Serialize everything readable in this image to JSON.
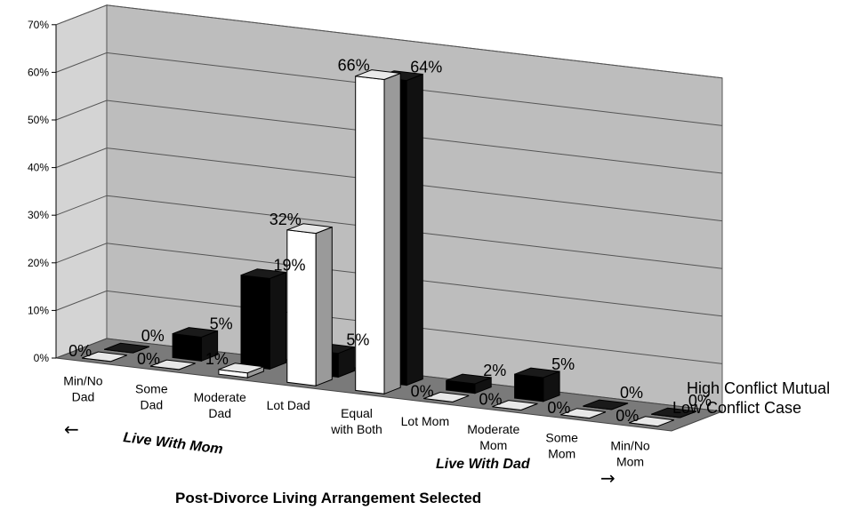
{
  "chart_data": {
    "type": "bar",
    "subtype": "3d-clustered",
    "categories": [
      [
        "Min/No",
        "Dad"
      ],
      [
        "Some",
        "Dad"
      ],
      [
        "Moderate",
        "Dad"
      ],
      [
        "Lot Dad"
      ],
      [
        "Equal",
        "with Both"
      ],
      [
        "Lot Mom"
      ],
      [
        "Moderate",
        "Mom"
      ],
      [
        "Some",
        "Mom"
      ],
      [
        "Min/No",
        "Mom"
      ]
    ],
    "series": [
      {
        "name": "Low Conflict Case",
        "color": "#ffffff",
        "values": [
          0,
          0,
          1,
          32,
          66,
          0,
          0,
          0,
          0
        ],
        "labels": [
          "0%",
          "0%",
          "1%",
          "32%",
          "66%",
          "0%",
          "0%",
          "0%",
          "0%"
        ]
      },
      {
        "name": "High Conflict Mutual",
        "color": "#000000",
        "values": [
          0,
          5,
          19,
          5,
          64,
          2,
          5,
          0,
          0
        ],
        "labels": [
          "0%",
          "5%",
          "19%",
          "5%",
          "64%",
          "2%",
          "5%",
          "0%",
          "0%"
        ]
      }
    ],
    "yticks": [
      "0%",
      "10%",
      "20%",
      "30%",
      "40%",
      "50%",
      "60%",
      "70%"
    ],
    "ylim": [
      0,
      70
    ],
    "xlabel": "Post-Divorce Living Arrangement Selected",
    "group_labels": [
      {
        "text": "Live With Mom",
        "arrow": "←"
      },
      {
        "text": "Live With Dad",
        "arrow": "→"
      }
    ],
    "wall_color": "#bdbdbd",
    "floor_color": "#7a7a7a",
    "grid": true,
    "legend_position": "right"
  }
}
